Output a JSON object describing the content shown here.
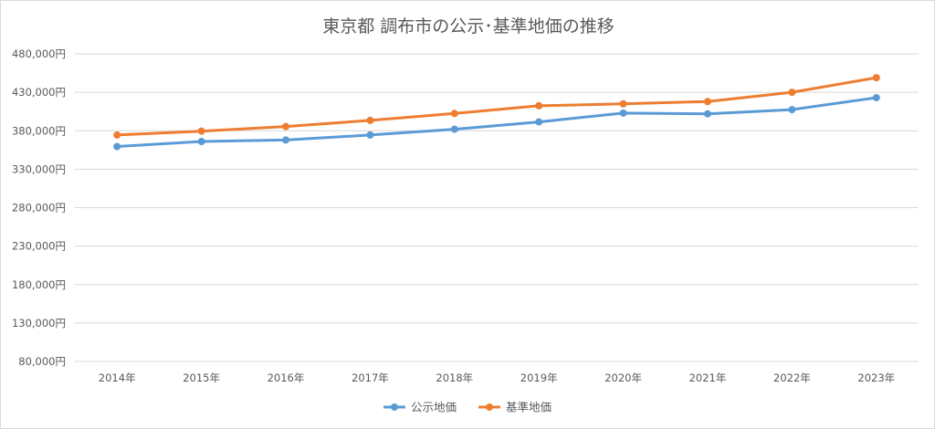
{
  "chart_data": {
    "type": "line",
    "title": "東京都 調布市の公示･基準地価の推移",
    "categories": [
      "2014年",
      "2015年",
      "2016年",
      "2017年",
      "2018年",
      "2019年",
      "2020年",
      "2021年",
      "2022年",
      "2023年"
    ],
    "yticks": [
      "80,000円",
      "130,000円",
      "180,000円",
      "230,000円",
      "280,000円",
      "330,000円",
      "380,000円",
      "430,000円",
      "480,000円"
    ],
    "ylim": [
      80000,
      480000
    ],
    "grid": true,
    "legend_position": "bottom",
    "series": [
      {
        "name": "公示地価",
        "color": "#5b9bd5",
        "values": [
          359500,
          366000,
          368000,
          374500,
          382000,
          391500,
          403000,
          402000,
          407500,
          423000
        ]
      },
      {
        "name": "基準地価",
        "color": "#ed7d31",
        "values": [
          374500,
          379500,
          385500,
          393500,
          402500,
          412500,
          415000,
          418000,
          430000,
          449000
        ]
      }
    ]
  }
}
